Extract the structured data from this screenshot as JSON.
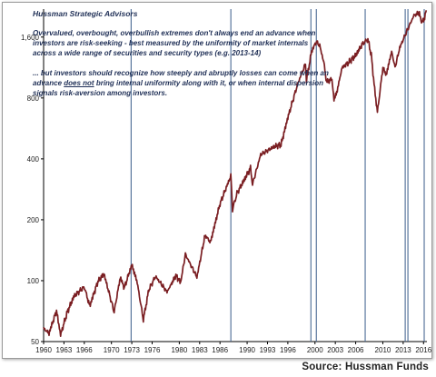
{
  "header": {
    "brand": "Hussman Strategic Advisors"
  },
  "annotations": {
    "note1": "Overvalued, overbought, overbullish extremes don't always end an advance when investors are risk-seeking - best measured by the uniformity of market internals across a wide range of securities and security types (e.g. 2013-14)",
    "note2_before": "... but investors should recognize how steeply and abruptly losses can come when an advance ",
    "note2_underlined": "does not",
    "note2_after": " bring internal uniformity along with it, or when internal dispersion signals risk-aversion among investors."
  },
  "footer": {
    "source": "Source: Hussman Funds"
  },
  "colors": {
    "line": "#7a1e22",
    "markers": "#4a6a94",
    "text": "#1f2f56"
  },
  "chart_data": {
    "type": "line",
    "yscale": "log",
    "ylim": [
      50,
      2200
    ],
    "xlim": [
      1960,
      2016.5
    ],
    "y_ticks": [
      50,
      100,
      200,
      400,
      800,
      1600
    ],
    "y_tick_labels": [
      "50",
      "100",
      "200",
      "400",
      "800",
      "1,600"
    ],
    "x_ticks": [
      1960,
      1963,
      1966,
      1970,
      1973,
      1976,
      1980,
      1983,
      1986,
      1990,
      1993,
      1996,
      2000,
      2003,
      2006,
      2010,
      2013,
      2016
    ],
    "x_tick_labels": [
      "1960",
      "1963",
      "1966",
      "1970",
      "1973",
      "1976",
      "1980",
      "1983",
      "1986",
      "1990",
      "1993",
      "1996",
      "2000",
      "2003",
      "2006",
      "2010",
      "2013",
      "2016"
    ],
    "grid": false,
    "legend": "none",
    "series": [
      {
        "values": [
          [
            1960.0,
            58
          ],
          [
            1960.8,
            55
          ],
          [
            1961.9,
            71
          ],
          [
            1962.5,
            54
          ],
          [
            1963.5,
            70
          ],
          [
            1964.5,
            84
          ],
          [
            1966.0,
            93
          ],
          [
            1966.8,
            75
          ],
          [
            1968.0,
            99
          ],
          [
            1968.9,
            108
          ],
          [
            1970.4,
            70
          ],
          [
            1971.3,
            104
          ],
          [
            1971.9,
            92
          ],
          [
            1973.0,
            120
          ],
          [
            1973.8,
            98
          ],
          [
            1974.7,
            64
          ],
          [
            1975.5,
            90
          ],
          [
            1976.5,
            105
          ],
          [
            1978.2,
            88
          ],
          [
            1979.5,
            106
          ],
          [
            1980.2,
            98
          ],
          [
            1980.9,
            135
          ],
          [
            1982.6,
            104
          ],
          [
            1983.8,
            168
          ],
          [
            1984.6,
            155
          ],
          [
            1986.0,
            240
          ],
          [
            1987.6,
            330
          ],
          [
            1987.85,
            225
          ],
          [
            1988.5,
            270
          ],
          [
            1990.5,
            360
          ],
          [
            1990.8,
            300
          ],
          [
            1992.0,
            420
          ],
          [
            1994.0,
            460
          ],
          [
            1995.0,
            470
          ],
          [
            1996.0,
            640
          ],
          [
            1997.5,
            950
          ],
          [
            1998.6,
            1180
          ],
          [
            1998.75,
            980
          ],
          [
            1999.5,
            1360
          ],
          [
            2000.2,
            1520
          ],
          [
            2000.7,
            1450
          ],
          [
            2001.3,
            1200
          ],
          [
            2001.7,
            960
          ],
          [
            2002.5,
            990
          ],
          [
            2002.8,
            790
          ],
          [
            2003.2,
            850
          ],
          [
            2004.0,
            1130
          ],
          [
            2005.0,
            1200
          ],
          [
            2006.0,
            1300
          ],
          [
            2007.0,
            1480
          ],
          [
            2007.8,
            1560
          ],
          [
            2008.3,
            1300
          ],
          [
            2008.8,
            880
          ],
          [
            2009.2,
            680
          ],
          [
            2010.0,
            1130
          ],
          [
            2010.5,
            1040
          ],
          [
            2011.3,
            1360
          ],
          [
            2011.8,
            1130
          ],
          [
            2012.5,
            1420
          ],
          [
            2013.5,
            1700
          ],
          [
            2014.6,
            2050
          ],
          [
            2015.4,
            2110
          ],
          [
            2015.7,
            1880
          ],
          [
            2016.0,
            1930
          ],
          [
            2016.4,
            2170
          ]
        ]
      }
    ],
    "event_markers": [
      1972.9,
      1987.6,
      1999.4,
      2000.2,
      2007.4,
      2013.3,
      2013.7,
      2016.1
    ]
  }
}
